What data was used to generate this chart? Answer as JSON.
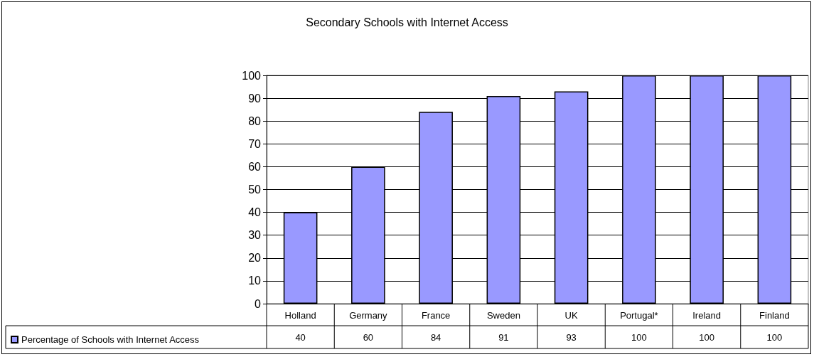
{
  "chart_data": {
    "type": "bar",
    "title": "Secondary Schools with Internet Access",
    "categories": [
      "Holland",
      "Germany",
      "France",
      "Sweden",
      "UK",
      "Portugal*",
      "Ireland",
      "Finland"
    ],
    "series": [
      {
        "name": "Percentage of Schools with Internet Access",
        "color": "#9999ff",
        "values": [
          40,
          60,
          84,
          91,
          93,
          100,
          100,
          100
        ]
      }
    ],
    "ylim": [
      0,
      100
    ],
    "yticks": [
      0,
      10,
      20,
      30,
      40,
      50,
      60,
      70,
      80,
      90,
      100
    ],
    "grid": "y",
    "legend": "bottom left",
    "data_labels": true
  }
}
